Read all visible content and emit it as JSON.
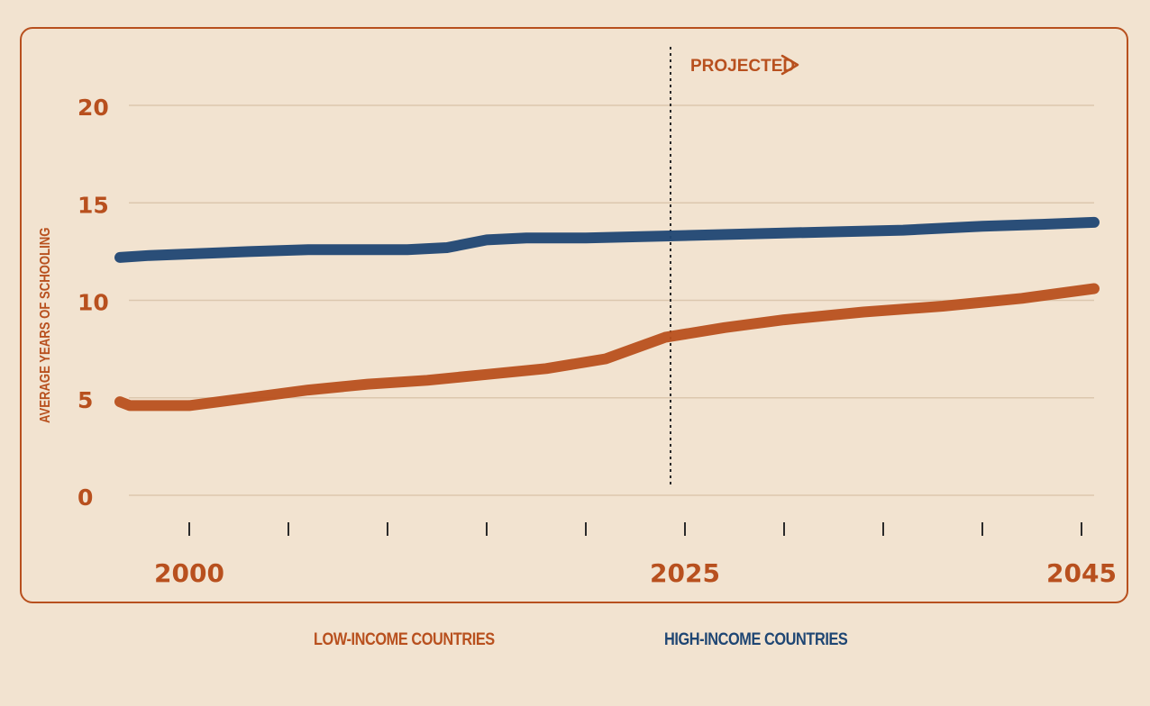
{
  "chart_data": {
    "type": "line",
    "ylabel": "AVERAGE YEARS OF SCHOOLING",
    "ylim": [
      0,
      20
    ],
    "yticks": [
      0,
      5,
      10,
      15,
      20
    ],
    "xlim": [
      1994,
      2046
    ],
    "x_tick_marks": [
      2000,
      2005,
      2010,
      2015,
      2020,
      2025,
      2030,
      2035,
      2040,
      2045
    ],
    "x_tick_labels": [
      {
        "x": 2000,
        "label": "2000"
      },
      {
        "x": 2025,
        "label": "2025"
      },
      {
        "x": 2045,
        "label": "2045"
      }
    ],
    "projection": {
      "start": 2024,
      "label": "PROJECTED"
    },
    "grid": true,
    "series": [
      {
        "name": "HIGH-INCOME COUNTRIES",
        "color": "#1f4673",
        "x": [
          1994,
          1998,
          2003,
          2006,
          2009,
          2011,
          2013,
          2015,
          2017,
          2020,
          2024,
          2028,
          2032,
          2036,
          2040,
          2043,
          2046
        ],
        "values": [
          12.2,
          12.3,
          12.5,
          12.6,
          12.6,
          12.6,
          12.7,
          13.1,
          13.2,
          13.2,
          13.3,
          13.4,
          13.5,
          13.6,
          13.8,
          13.9,
          14.0
        ]
      },
      {
        "name": "LOW-INCOME COUNTRIES",
        "color": "#b8501e",
        "x": [
          1994,
          1997,
          2000,
          2003,
          2006,
          2009,
          2012,
          2015,
          2018,
          2021,
          2024,
          2027,
          2030,
          2034,
          2038,
          2042,
          2046
        ],
        "values": [
          4.8,
          4.6,
          4.6,
          5.0,
          5.4,
          5.7,
          5.9,
          6.2,
          6.5,
          7.0,
          8.1,
          8.6,
          9.0,
          9.4,
          9.7,
          10.1,
          10.6
        ]
      }
    ]
  }
}
